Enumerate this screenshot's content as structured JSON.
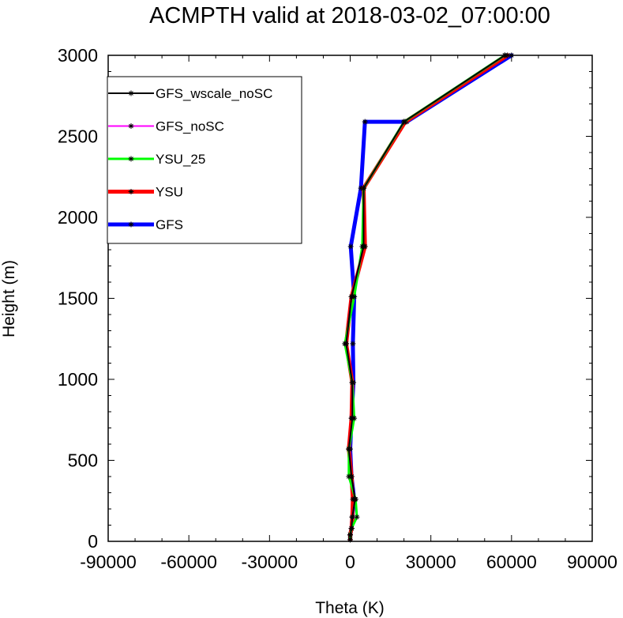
{
  "chart_data": {
    "type": "line",
    "title": "ACMPTH valid at 2018-03-02_07:00:00",
    "xlabel": "Theta (K)",
    "ylabel": "Height (m)",
    "xlim": [
      -90000,
      90000
    ],
    "ylim": [
      0,
      3000
    ],
    "x_ticks": [
      -90000,
      -60000,
      -30000,
      0,
      30000,
      60000,
      90000
    ],
    "x_tick_labels": [
      "-90000",
      "-60000",
      "-30000",
      "0",
      "30000",
      "60000",
      "90000"
    ],
    "y_ticks": [
      0,
      500,
      1000,
      1500,
      2000,
      2500,
      3000
    ],
    "y_tick_labels": [
      "0",
      "500",
      "1000",
      "1500",
      "2000",
      "2500",
      "3000"
    ],
    "grid": false,
    "legend_position": "top-left",
    "series": [
      {
        "name": "GFS",
        "color": "#0000ff",
        "line_width": 5,
        "x": [
          0,
          0,
          500,
          800,
          1500,
          500,
          0,
          500,
          1200,
          1000,
          1500,
          200,
          4000,
          5500,
          21000,
          60000
        ],
        "y": [
          10,
          40,
          80,
          150,
          260,
          400,
          570,
          760,
          980,
          1220,
          1510,
          1820,
          2180,
          2590,
          2590,
          3000
        ]
      },
      {
        "name": "YSU",
        "color": "#ff0000",
        "line_width": 5,
        "x": [
          0,
          0,
          500,
          800,
          1000,
          500,
          -500,
          500,
          800,
          -1500,
          500,
          5500,
          5000,
          20500,
          58500
        ],
        "y": [
          10,
          40,
          80,
          150,
          260,
          400,
          570,
          760,
          980,
          1220,
          1510,
          1820,
          2180,
          2590,
          3000
        ]
      },
      {
        "name": "YSU_25",
        "color": "#00ff00",
        "line_width": 3,
        "x": [
          0,
          0,
          500,
          2500,
          2000,
          -500,
          -500,
          1500,
          800,
          -2000,
          1500,
          4500,
          5000,
          20000,
          57500
        ],
        "y": [
          10,
          40,
          80,
          150,
          260,
          400,
          570,
          760,
          980,
          1220,
          1510,
          1820,
          2180,
          2590,
          3000
        ]
      },
      {
        "name": "GFS_noSC",
        "color": "#ff00ff",
        "line_width": 2,
        "x": [
          0,
          0,
          500,
          800,
          1800,
          500,
          -500,
          800,
          800,
          -1500,
          500,
          5000,
          5000,
          20000,
          57500
        ],
        "y": [
          10,
          40,
          80,
          150,
          260,
          400,
          570,
          760,
          980,
          1220,
          1510,
          1820,
          2180,
          2590,
          3000
        ]
      },
      {
        "name": "GFS_wscale_noSC",
        "color": "#000000",
        "line_width": 2,
        "x": [
          0,
          0,
          500,
          800,
          1800,
          500,
          -500,
          800,
          800,
          -1500,
          500,
          5000,
          5000,
          20000,
          57500
        ],
        "y": [
          10,
          40,
          80,
          150,
          260,
          400,
          570,
          760,
          980,
          1220,
          1510,
          1820,
          2180,
          2590,
          3000
        ]
      }
    ]
  },
  "legend": {
    "entries": [
      {
        "name": "GFS_wscale_noSC",
        "color": "#000000",
        "line_width": 2
      },
      {
        "name": "GFS_noSC",
        "color": "#ff00ff",
        "line_width": 2
      },
      {
        "name": "YSU_25",
        "color": "#00ff00",
        "line_width": 3
      },
      {
        "name": "YSU",
        "color": "#ff0000",
        "line_width": 5
      },
      {
        "name": "GFS",
        "color": "#0000ff",
        "line_width": 5
      }
    ]
  }
}
